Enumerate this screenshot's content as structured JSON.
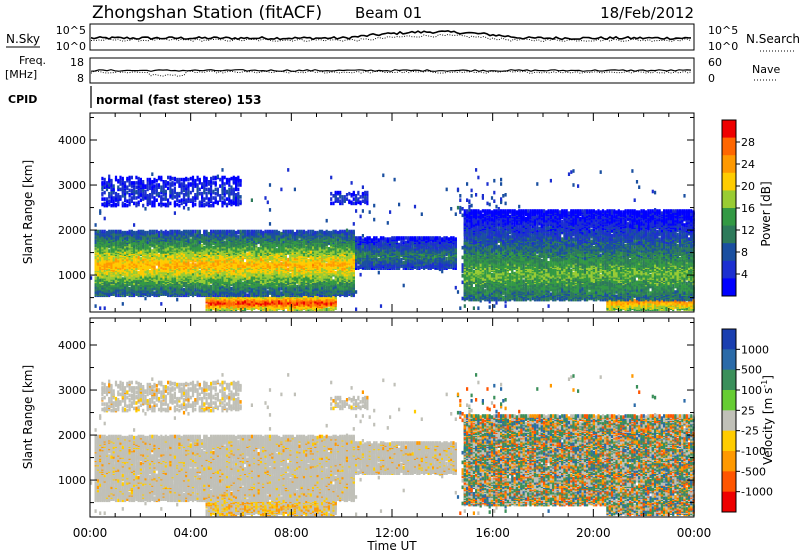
{
  "header": {
    "station": "Zhongshan Station (fitACF)",
    "beam": "Beam 01",
    "date": "18/Feb/2012"
  },
  "strip_labels": {
    "nsky": "N.Sky",
    "nsearch": "N.Search",
    "freq": "Freq.",
    "mhz": "[MHz]",
    "nave": "Nave",
    "cpid": "CPID",
    "cpid_value": "normal (fast stereo) 153",
    "nsky_top": "10^5",
    "nsky_bottom": "10^0",
    "nsearch_top": "10^5",
    "nsearch_bottom": "10^0",
    "freq_top": "18",
    "freq_bottom": "8",
    "nave_top": "60",
    "nave_bottom": "0"
  },
  "power_colorbar": {
    "label": "Power [dB]",
    "ticks": [
      "28",
      "24",
      "20",
      "16",
      "12",
      "8",
      "4"
    ],
    "colors": [
      "#ee0000",
      "#ff6600",
      "#ff9900",
      "#ffcc00",
      "#99cc33",
      "#339944",
      "#2d7a5a",
      "#1a4fa0",
      "#1c2fd0",
      "#0000ff"
    ]
  },
  "velocity_colorbar": {
    "label": "Velocity [m s",
    "label_sup": "-1",
    "label_end": "]",
    "ticks": [
      "1000",
      "500",
      "100",
      "25",
      "-25",
      "-100",
      "-500",
      "-1000"
    ],
    "colors": [
      "#1a3fb0",
      "#2a6aa8",
      "#3a8f5a",
      "#66cc33",
      "#c0c0b8",
      "#ffcc00",
      "#ff9900",
      "#ff5500",
      "#ee0000"
    ]
  },
  "chart_data": [
    {
      "type": "heatmap",
      "name": "power",
      "ylabel": "Slant Range [km]",
      "xlabel": "Time UT",
      "xticks": [
        "00:00",
        "04:00",
        "08:00",
        "12:00",
        "16:00",
        "20:00",
        "00:00"
      ],
      "yticks": [
        "1000",
        "2000",
        "3000",
        "4000"
      ],
      "xlim": [
        0,
        24
      ],
      "ylim": [
        180,
        4600
      ],
      "zlabel": "Power [dB]",
      "zlim": [
        0,
        32
      ]
    },
    {
      "type": "heatmap",
      "name": "velocity",
      "ylabel": "Slant Range [km]",
      "xlabel": "Time UT",
      "xticks": [
        "00:00",
        "04:00",
        "08:00",
        "12:00",
        "16:00",
        "20:00",
        "00:00"
      ],
      "yticks": [
        "1000",
        "2000",
        "3000",
        "4000"
      ],
      "xlim": [
        0,
        24
      ],
      "ylim": [
        180,
        4600
      ],
      "zlabel": "Velocity [m s-1]",
      "zlim": [
        -1000,
        1000
      ]
    }
  ]
}
